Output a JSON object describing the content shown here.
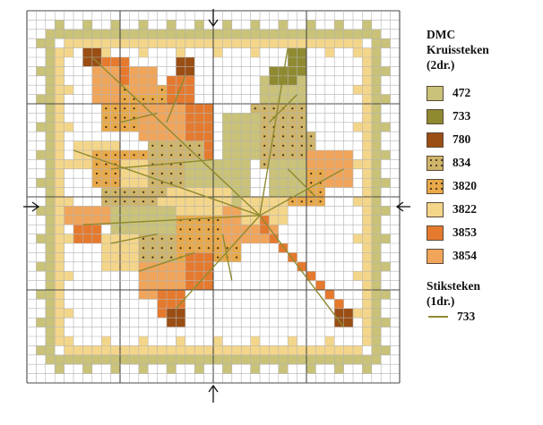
{
  "legend": {
    "title_line1": "DMC",
    "title_line2": "Kruissteken",
    "title_line3": "(2dr.)",
    "items": [
      {
        "code": "472",
        "color": "#c9c278",
        "dotted": false
      },
      {
        "code": "733",
        "color": "#8f8a30",
        "dotted": false
      },
      {
        "code": "780",
        "color": "#9a4e14",
        "dotted": false
      },
      {
        "code": "834",
        "color": "#cfb56a",
        "dotted": true
      },
      {
        "code": "3820",
        "color": "#e9a94a",
        "dotted": true
      },
      {
        "code": "3822",
        "color": "#f4d68a",
        "dotted": false
      },
      {
        "code": "3853",
        "color": "#e57a2f",
        "dotted": false
      },
      {
        "code": "3854",
        "color": "#f0a55a",
        "dotted": false
      }
    ],
    "stitch_title_line1": "Stiksteken",
    "stitch_title_line2": "(1dr.)",
    "stitch_item": {
      "code": "733",
      "color": "#8f8a30"
    }
  },
  "colors": {
    "grid_line": "#b3b3b3",
    "major_line": "#4a4a4a",
    "border_inner": "#f4d68a",
    "border_outer": "#c9c278",
    "leaf_vein": "#8f8a30"
  }
}
